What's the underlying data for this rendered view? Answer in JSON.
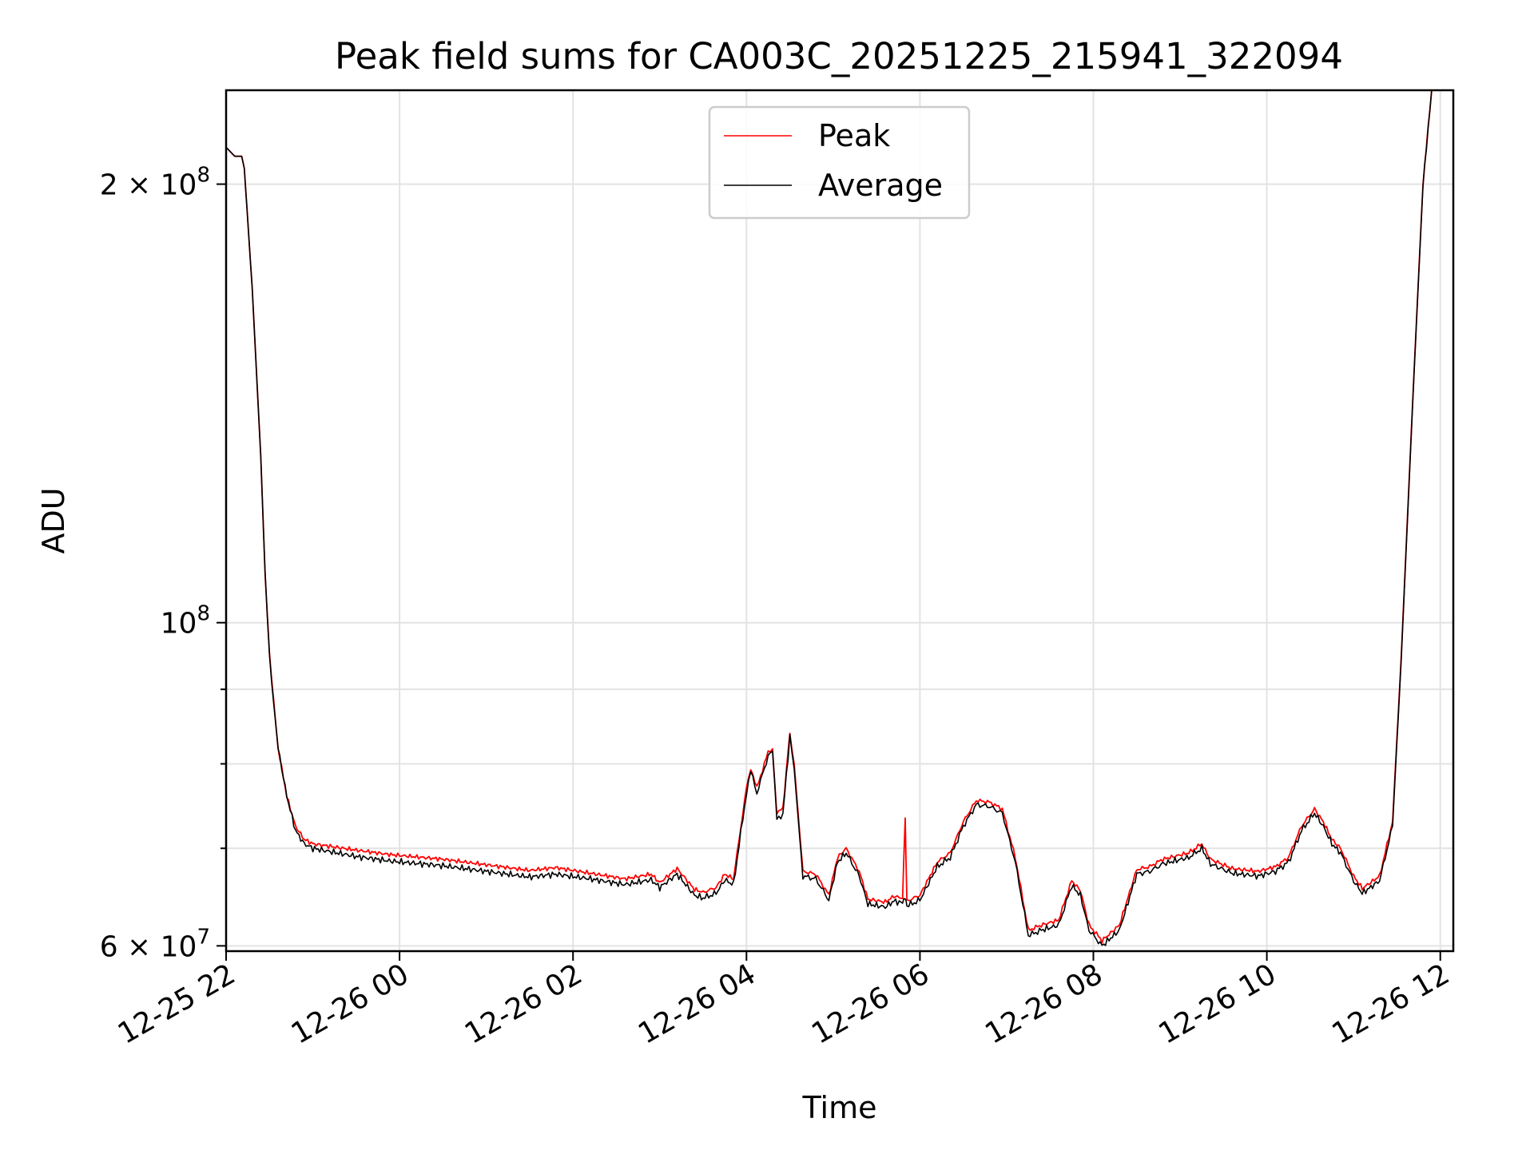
{
  "chart_data": {
    "type": "line",
    "title": "Peak field sums for CA003C_20251225_215941_322094",
    "xlabel": "Time",
    "ylabel": "ADU",
    "yscale": "log",
    "ylim": [
      59500000,
      232000000
    ],
    "xlim_hours": [
      22.0,
      36.15
    ],
    "grid": true,
    "legend_location": "upper center",
    "x_ticks": [
      {
        "hour": 22,
        "label": "12-25 22"
      },
      {
        "hour": 24,
        "label": "12-26 00"
      },
      {
        "hour": 26,
        "label": "12-26 02"
      },
      {
        "hour": 28,
        "label": "12-26 04"
      },
      {
        "hour": 30,
        "label": "12-26 06"
      },
      {
        "hour": 32,
        "label": "12-26 08"
      },
      {
        "hour": 34,
        "label": "12-26 10"
      },
      {
        "hour": 36,
        "label": "12-26 12"
      }
    ],
    "y_major_ticks": [
      {
        "value": 200000000,
        "base": "2 × 10",
        "exp": "8"
      },
      {
        "value": 100000000,
        "base": "10",
        "exp": "8"
      },
      {
        "value": 60000000,
        "base": "6 × 10",
        "exp": "7"
      }
    ],
    "y_minor_ticks": [
      70000000,
      80000000,
      90000000
    ],
    "series": [
      {
        "name": "Peak",
        "color": "#ff0000",
        "points": [
          [
            22.0,
            212000000
          ],
          [
            22.1,
            209000000
          ],
          [
            22.18,
            209000000
          ],
          [
            22.21,
            205000000
          ],
          [
            22.3,
            170000000
          ],
          [
            22.4,
            130000000
          ],
          [
            22.45,
            108000000
          ],
          [
            22.5,
            95000000
          ],
          [
            22.55,
            88000000
          ],
          [
            22.6,
            82000000
          ],
          [
            22.7,
            76000000
          ],
          [
            22.8,
            72500000
          ],
          [
            22.9,
            71000000
          ],
          [
            23.0,
            70500000
          ],
          [
            23.5,
            69800000
          ],
          [
            23.9,
            69300000
          ],
          [
            24.5,
            68800000
          ],
          [
            25.0,
            68200000
          ],
          [
            25.5,
            67600000
          ],
          [
            25.8,
            67900000
          ],
          [
            26.2,
            67300000
          ],
          [
            26.6,
            66700000
          ],
          [
            26.9,
            67200000
          ],
          [
            27.0,
            66300000
          ],
          [
            27.2,
            67800000
          ],
          [
            27.4,
            65600000
          ],
          [
            27.5,
            65300000
          ],
          [
            27.65,
            65800000
          ],
          [
            27.75,
            67200000
          ],
          [
            27.85,
            66700000
          ],
          [
            28.0,
            77000000
          ],
          [
            28.05,
            79500000
          ],
          [
            28.12,
            77000000
          ],
          [
            28.25,
            81500000
          ],
          [
            28.3,
            82000000
          ],
          [
            28.35,
            74000000
          ],
          [
            28.42,
            74500000
          ],
          [
            28.5,
            84000000
          ],
          [
            28.55,
            80000000
          ],
          [
            28.65,
            67500000
          ],
          [
            28.8,
            67200000
          ],
          [
            28.95,
            65000000
          ],
          [
            29.05,
            69000000
          ],
          [
            29.15,
            70000000
          ],
          [
            29.3,
            67500000
          ],
          [
            29.4,
            64600000
          ],
          [
            29.6,
            64300000
          ],
          [
            29.7,
            64900000
          ],
          [
            29.8,
            64700000
          ],
          [
            29.83,
            73500000
          ],
          [
            29.85,
            64400000
          ],
          [
            30.0,
            65000000
          ],
          [
            30.2,
            68500000
          ],
          [
            30.35,
            69500000
          ],
          [
            30.5,
            73000000
          ],
          [
            30.65,
            75500000
          ],
          [
            30.8,
            75300000
          ],
          [
            30.95,
            74500000
          ],
          [
            31.1,
            69000000
          ],
          [
            31.25,
            61500000
          ],
          [
            31.4,
            62000000
          ],
          [
            31.6,
            62500000
          ],
          [
            31.75,
            66500000
          ],
          [
            31.85,
            65500000
          ],
          [
            31.95,
            62000000
          ],
          [
            32.1,
            60500000
          ],
          [
            32.3,
            62000000
          ],
          [
            32.5,
            67700000
          ],
          [
            32.65,
            68000000
          ],
          [
            32.8,
            68800000
          ],
          [
            33.1,
            69500000
          ],
          [
            33.25,
            70500000
          ],
          [
            33.35,
            68800000
          ],
          [
            33.6,
            67800000
          ],
          [
            33.9,
            67500000
          ],
          [
            34.1,
            68000000
          ],
          [
            34.25,
            69000000
          ],
          [
            34.4,
            72500000
          ],
          [
            34.55,
            74500000
          ],
          [
            34.65,
            73000000
          ],
          [
            34.75,
            71000000
          ],
          [
            34.85,
            70000000
          ],
          [
            35.0,
            67000000
          ],
          [
            35.1,
            65700000
          ],
          [
            35.3,
            67000000
          ],
          [
            35.45,
            73000000
          ],
          [
            35.55,
            95000000
          ],
          [
            35.7,
            150000000
          ],
          [
            35.8,
            200000000
          ],
          [
            35.9,
            232000000
          ]
        ]
      },
      {
        "name": "Average",
        "color": "#000000",
        "points": [
          [
            22.0,
            212000000
          ],
          [
            22.1,
            209000000
          ],
          [
            22.18,
            209000000
          ],
          [
            22.21,
            205000000
          ],
          [
            22.3,
            170000000
          ],
          [
            22.4,
            130000000
          ],
          [
            22.45,
            108000000
          ],
          [
            22.5,
            95000000
          ],
          [
            22.55,
            88000000
          ],
          [
            22.6,
            82000000
          ],
          [
            22.7,
            76000000
          ],
          [
            22.8,
            72000000
          ],
          [
            22.9,
            70500000
          ],
          [
            23.0,
            70000000
          ],
          [
            23.5,
            69100000
          ],
          [
            23.9,
            68600000
          ],
          [
            24.5,
            68100000
          ],
          [
            25.0,
            67500000
          ],
          [
            25.5,
            66900000
          ],
          [
            25.8,
            67200000
          ],
          [
            26.2,
            66700000
          ],
          [
            26.6,
            66100000
          ],
          [
            26.9,
            66600000
          ],
          [
            27.0,
            65800000
          ],
          [
            27.2,
            67200000
          ],
          [
            27.4,
            65000000
          ],
          [
            27.5,
            64700000
          ],
          [
            27.65,
            65200000
          ],
          [
            27.75,
            66600000
          ],
          [
            27.85,
            66100000
          ],
          [
            28.0,
            76400000
          ],
          [
            28.05,
            79000000
          ],
          [
            28.12,
            76400000
          ],
          [
            28.25,
            81000000
          ],
          [
            28.3,
            81500000
          ],
          [
            28.35,
            73400000
          ],
          [
            28.42,
            73900000
          ],
          [
            28.5,
            83500000
          ],
          [
            28.55,
            79400000
          ],
          [
            28.65,
            67000000
          ],
          [
            28.8,
            66700000
          ],
          [
            28.95,
            64500000
          ],
          [
            29.05,
            68500000
          ],
          [
            29.15,
            69500000
          ],
          [
            29.3,
            67000000
          ],
          [
            29.4,
            64100000
          ],
          [
            29.6,
            63800000
          ],
          [
            29.7,
            64400000
          ],
          [
            29.8,
            64200000
          ],
          [
            29.83,
            64800000
          ],
          [
            29.85,
            63900000
          ],
          [
            30.0,
            64500000
          ],
          [
            30.2,
            68000000
          ],
          [
            30.35,
            69000000
          ],
          [
            30.5,
            72500000
          ],
          [
            30.65,
            75000000
          ],
          [
            30.8,
            74800000
          ],
          [
            30.95,
            74000000
          ],
          [
            31.1,
            68500000
          ],
          [
            31.25,
            61000000
          ],
          [
            31.4,
            61500000
          ],
          [
            31.6,
            62000000
          ],
          [
            31.75,
            66000000
          ],
          [
            31.85,
            65000000
          ],
          [
            31.95,
            61500000
          ],
          [
            32.1,
            60000000
          ],
          [
            32.3,
            61500000
          ],
          [
            32.5,
            67200000
          ],
          [
            32.65,
            67500000
          ],
          [
            32.8,
            68300000
          ],
          [
            33.1,
            69000000
          ],
          [
            33.25,
            70000000
          ],
          [
            33.35,
            68300000
          ],
          [
            33.6,
            67300000
          ],
          [
            33.9,
            67000000
          ],
          [
            34.1,
            67500000
          ],
          [
            34.25,
            68500000
          ],
          [
            34.4,
            72000000
          ],
          [
            34.55,
            74000000
          ],
          [
            34.65,
            72500000
          ],
          [
            34.75,
            70500000
          ],
          [
            34.85,
            69500000
          ],
          [
            35.0,
            66500000
          ],
          [
            35.1,
            65200000
          ],
          [
            35.3,
            66500000
          ],
          [
            35.45,
            72500000
          ],
          [
            35.55,
            94500000
          ],
          [
            35.7,
            149500000
          ],
          [
            35.8,
            199500000
          ],
          [
            35.9,
            232000000
          ]
        ]
      }
    ]
  }
}
